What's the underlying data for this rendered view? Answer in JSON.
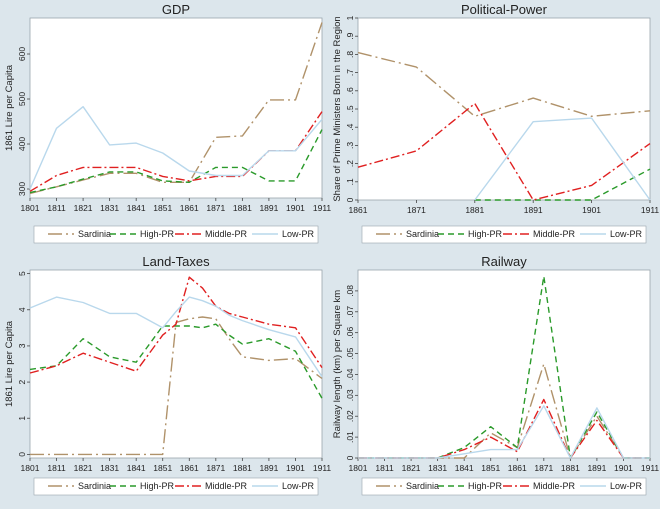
{
  "chart_data": [
    {
      "type": "line",
      "title": "GDP",
      "xlabel": "",
      "ylabel": "1861 Lire per Capita",
      "xlim": [
        1801,
        1911
      ],
      "ylim": [
        280,
        680
      ],
      "xticks": [
        1801,
        1811,
        1821,
        1831,
        1841,
        1851,
        1861,
        1871,
        1881,
        1891,
        1901,
        1911
      ],
      "yticks": [
        300,
        400,
        500,
        600
      ],
      "x": [
        1801,
        1811,
        1821,
        1831,
        1841,
        1851,
        1861,
        1871,
        1881,
        1891,
        1901,
        1911
      ],
      "series": [
        {
          "name": "Sardinia",
          "values": [
            290,
            305,
            320,
            335,
            335,
            315,
            315,
            415,
            418,
            498,
            498,
            670
          ]
        },
        {
          "name": "High-PR",
          "values": [
            292,
            305,
            322,
            338,
            338,
            318,
            315,
            348,
            348,
            318,
            318,
            432
          ]
        },
        {
          "name": "Middle-PR",
          "values": [
            295,
            330,
            348,
            348,
            348,
            328,
            318,
            328,
            328,
            385,
            385,
            472
          ]
        },
        {
          "name": "Low-PR",
          "values": [
            300,
            435,
            483,
            398,
            402,
            380,
            340,
            330,
            330,
            385,
            385,
            455
          ]
        }
      ]
    },
    {
      "type": "line",
      "title": "Political-Power",
      "xlabel": "",
      "ylabel": "Share of Prime Ministers Born in the Region",
      "xlim": [
        1861,
        1911
      ],
      "ylim": [
        0,
        1
      ],
      "xticks": [
        1861,
        1871,
        1881,
        1891,
        1901,
        1911
      ],
      "yticks": [
        0,
        0.1,
        0.2,
        0.3,
        0.4,
        0.5,
        0.6,
        0.7,
        0.8,
        0.9,
        1
      ],
      "ytick_labels": [
        "0",
        ".1",
        ".2",
        ".3",
        ".4",
        ".5",
        ".6",
        ".7",
        ".8",
        ".9",
        "1"
      ],
      "x": [
        1861,
        1871,
        1881,
        1891,
        1901,
        1911
      ],
      "series": [
        {
          "name": "Sardinia",
          "values": [
            0.81,
            0.73,
            0.46,
            0.56,
            0.46,
            0.49
          ]
        },
        {
          "name": "High-PR",
          "values": [
            null,
            null,
            0,
            0,
            0,
            0.17
          ]
        },
        {
          "name": "Middle-PR",
          "values": [
            0.18,
            0.27,
            0.53,
            0.0,
            0.08,
            0.31
          ]
        },
        {
          "name": "Low-PR",
          "values": [
            null,
            null,
            0,
            0.43,
            0.45,
            0
          ]
        }
      ]
    },
    {
      "type": "line",
      "title": "Land-Taxes",
      "xlabel": "",
      "ylabel": "1861 Lire per Capita",
      "xlim": [
        1801,
        1911
      ],
      "ylim": [
        -0.1,
        5.1
      ],
      "xticks": [
        1801,
        1811,
        1821,
        1831,
        1841,
        1851,
        1861,
        1871,
        1881,
        1891,
        1901,
        1911
      ],
      "yticks": [
        0,
        1,
        2,
        3,
        4,
        5
      ],
      "x": [
        1801,
        1811,
        1821,
        1831,
        1841,
        1851,
        1856,
        1861,
        1866,
        1871,
        1876,
        1881,
        1891,
        1901,
        1911
      ],
      "series": [
        {
          "name": "Sardinia",
          "values": [
            0,
            0,
            0,
            0,
            0,
            0,
            3.65,
            3.75,
            3.8,
            3.75,
            3.2,
            2.7,
            2.6,
            2.65,
            2.1
          ]
        },
        {
          "name": "High-PR",
          "values": [
            2.35,
            2.45,
            3.2,
            2.7,
            2.55,
            3.55,
            3.55,
            3.55,
            3.5,
            3.6,
            3.3,
            3.05,
            3.2,
            2.85,
            1.55
          ]
        },
        {
          "name": "Middle-PR",
          "values": [
            2.25,
            2.45,
            2.8,
            2.55,
            2.3,
            3.3,
            3.6,
            4.9,
            4.6,
            4.1,
            3.9,
            3.8,
            3.6,
            3.5,
            2.4
          ]
        },
        {
          "name": "Low-PR",
          "values": [
            4.05,
            4.35,
            4.2,
            3.9,
            3.9,
            3.5,
            3.95,
            4.35,
            4.25,
            4.1,
            3.85,
            3.7,
            3.45,
            3.25,
            2.15
          ]
        }
      ]
    },
    {
      "type": "line",
      "title": "Railway",
      "xlabel": "",
      "ylabel": "Railway length (km) per Square km",
      "xlim": [
        1801,
        1911
      ],
      "ylim": [
        0,
        0.09
      ],
      "xticks": [
        1801,
        1811,
        1821,
        1831,
        1841,
        1851,
        1861,
        1871,
        1881,
        1891,
        1901,
        1911
      ],
      "yticks": [
        0,
        0.01,
        0.02,
        0.03,
        0.04,
        0.05,
        0.06,
        0.07,
        0.08
      ],
      "ytick_labels": [
        "0",
        ".01",
        ".02",
        ".03",
        ".04",
        ".05",
        ".06",
        ".07",
        ".08"
      ],
      "x": [
        1801,
        1811,
        1821,
        1831,
        1841,
        1851,
        1861,
        1871,
        1881,
        1891,
        1901,
        1911
      ],
      "series": [
        {
          "name": "Sardinia",
          "values": [
            0,
            0,
            0,
            0,
            0,
            0.012,
            0.005,
            0.045,
            0,
            0.02,
            0,
            0
          ]
        },
        {
          "name": "High-PR",
          "values": [
            0,
            0,
            0,
            0,
            0.005,
            0.015,
            0.005,
            0.087,
            0,
            0.022,
            0,
            0
          ]
        },
        {
          "name": "Middle-PR",
          "values": [
            0,
            0,
            0,
            0,
            0.004,
            0.01,
            0.003,
            0.028,
            0,
            0.018,
            0,
            0
          ]
        },
        {
          "name": "Low-PR",
          "values": [
            0,
            0,
            0,
            0,
            0.002,
            0.004,
            0.004,
            0.025,
            0,
            0.024,
            0,
            0
          ]
        }
      ]
    }
  ],
  "legend": {
    "entries": [
      {
        "name": "Sardinia",
        "color": "#b0926a"
      },
      {
        "name": "High-PR",
        "color": "#2a9a2a"
      },
      {
        "name": "Middle-PR",
        "color": "#e02020"
      },
      {
        "name": "Low-PR",
        "color": "#b9d8ec"
      }
    ]
  },
  "colors": {
    "background": "#dce6ec",
    "plot_area": "#ffffff",
    "Sardinia": "#b0926a",
    "High-PR": "#2a9a2a",
    "Middle-PR": "#e02020",
    "Low-PR": "#b9d8ec"
  }
}
